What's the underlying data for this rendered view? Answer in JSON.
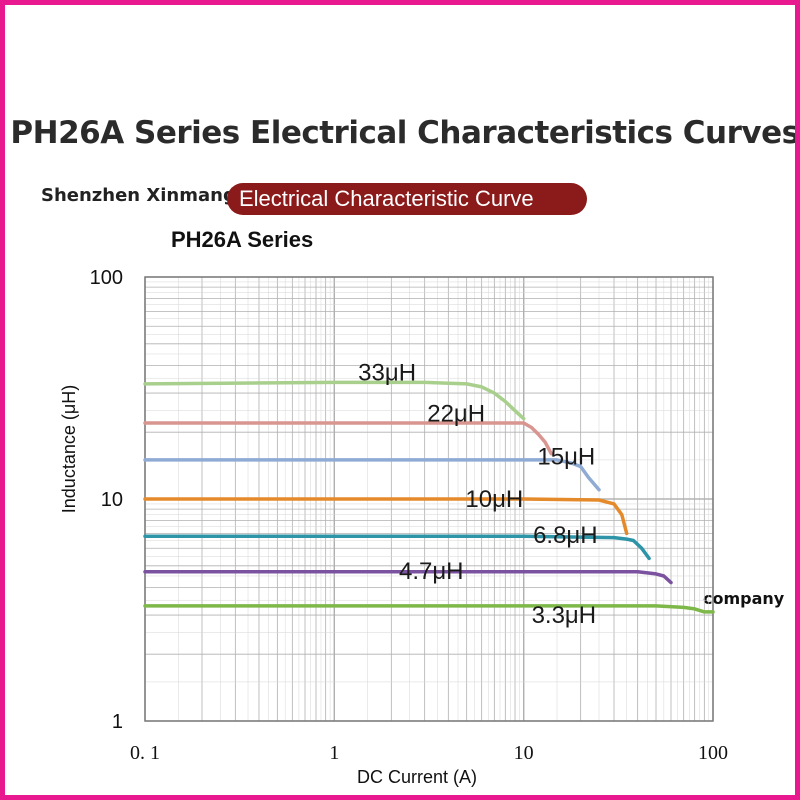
{
  "header": {
    "title": "PH26A Series Electrical Characteristics Curves",
    "brand": "Shenzhen Xinmang",
    "pill_label": "Electrical Characteristic Curve",
    "company_label": "company"
  },
  "colors": {
    "frame": "#e8198e",
    "pill": "#8b1a1a",
    "grid": "#b0b0b0"
  },
  "chart_data": {
    "type": "line",
    "title": "PH26A  Series",
    "xlabel": "DC Current (A)",
    "ylabel": "Inductance (μH)",
    "x_scale": "log",
    "y_scale": "log",
    "xlim": [
      0.1,
      100
    ],
    "ylim": [
      1,
      100
    ],
    "x_ticks": [
      {
        "value": 0.1,
        "label": "0. 1"
      },
      {
        "value": 1,
        "label": "1"
      },
      {
        "value": 10,
        "label": "10"
      },
      {
        "value": 100,
        "label": "100"
      }
    ],
    "y_ticks": [
      {
        "value": 100,
        "label": "100"
      },
      {
        "value": 10,
        "label": "10"
      },
      {
        "value": 1,
        "label": "1"
      }
    ],
    "grid": true,
    "legend": "inline labels",
    "series": [
      {
        "name": "33μH",
        "color": "#a9cf8d",
        "label_at": [
          1.9,
          37.2
        ],
        "x": [
          0.1,
          1,
          3,
          5,
          6,
          7,
          8,
          9,
          10
        ],
        "y": [
          33,
          33.5,
          33.5,
          33,
          32,
          30,
          27.5,
          25,
          23
        ]
      },
      {
        "name": "22μH",
        "color": "#d99590",
        "label_at": [
          4.4,
          24.3
        ],
        "x": [
          0.1,
          1,
          5,
          10,
          11,
          12,
          13,
          14
        ],
        "y": [
          22,
          22,
          22,
          22,
          21,
          19.5,
          18,
          16
        ]
      },
      {
        "name": "15μH",
        "color": "#8fabd3",
        "label_at": [
          16.8,
          15.5
        ],
        "x": [
          0.1,
          1,
          10,
          15,
          18,
          20,
          22,
          25
        ],
        "y": [
          15,
          15,
          15,
          15,
          14.5,
          14,
          12.5,
          11
        ]
      },
      {
        "name": "10μH",
        "color": "#e58a2b",
        "label_at": [
          7.0,
          10.0
        ],
        "x": [
          0.1,
          1,
          10,
          25,
          30,
          33,
          35
        ],
        "y": [
          10,
          10,
          10,
          9.9,
          9.5,
          8.5,
          7
        ]
      },
      {
        "name": "6.8μH",
        "color": "#2e94a8",
        "label_at": [
          16.6,
          6.9
        ],
        "x": [
          0.1,
          1,
          10,
          30,
          35,
          38,
          42,
          46
        ],
        "y": [
          6.8,
          6.8,
          6.8,
          6.7,
          6.6,
          6.5,
          6.0,
          5.4
        ]
      },
      {
        "name": "4.7μH",
        "color": "#7a52a0",
        "label_at": [
          3.25,
          4.75
        ],
        "x": [
          0.1,
          1,
          10,
          40,
          50,
          55,
          60
        ],
        "y": [
          4.7,
          4.7,
          4.7,
          4.7,
          4.6,
          4.5,
          4.2
        ]
      },
      {
        "name": "3.3μH",
        "color": "#7db849",
        "label_at": [
          16.3,
          3.0
        ],
        "x": [
          0.1,
          1,
          10,
          50,
          70,
          80,
          90,
          100
        ],
        "y": [
          3.3,
          3.3,
          3.3,
          3.3,
          3.25,
          3.2,
          3.1,
          3.1
        ]
      }
    ]
  }
}
